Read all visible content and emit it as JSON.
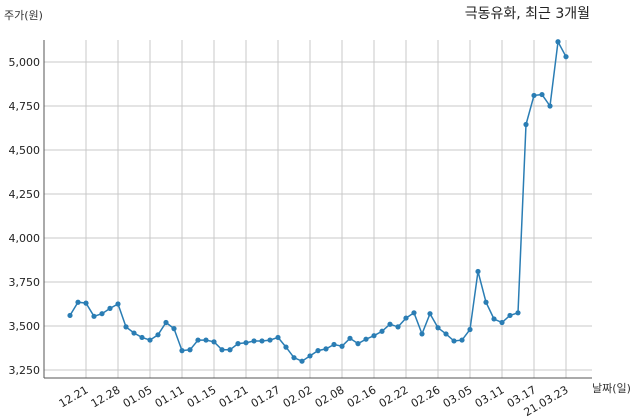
{
  "chart_data": {
    "type": "line",
    "title": "극동유화, 최근 3개월",
    "ylabel": "주가(원)",
    "xlabel": "날짜(일)",
    "ylim": [
      3250,
      5125
    ],
    "yticks": [
      3250,
      3500,
      3750,
      4000,
      4250,
      4500,
      4750,
      5000
    ],
    "ytick_labels": [
      "3,250",
      "3,500",
      "3,750",
      "4,000",
      "4,250",
      "4,500",
      "4,750",
      "5,000"
    ],
    "xtick_labels": [
      "12.21",
      "12.28",
      "01.05",
      "01.11",
      "01.15",
      "01.21",
      "01.27",
      "02.02",
      "02.08",
      "02.16",
      "02.22",
      "02.26",
      "03.05",
      "03.11",
      "03.17",
      "21.03.23"
    ],
    "xtick_indices": [
      3,
      7,
      11,
      15,
      19,
      23,
      27,
      31,
      35,
      39,
      43,
      47,
      51,
      55,
      59,
      63
    ],
    "grid": true,
    "line_color": "#2a7db4",
    "series": [
      {
        "values": [
          3560,
          3635,
          3630,
          3555,
          3570,
          3600,
          3625,
          3495,
          3460,
          3435,
          3420,
          3450,
          3520,
          3485,
          3360,
          3365,
          3420,
          3420,
          3410,
          3365,
          3365,
          3400,
          3405,
          3415,
          3415,
          3420,
          3435,
          3380,
          3320,
          3300,
          3330,
          3360,
          3370,
          3395,
          3385,
          3430,
          3400,
          3425,
          3445,
          3470,
          3510,
          3495,
          3545,
          3575,
          3455,
          3570,
          3490,
          3455,
          3415,
          3420,
          3480,
          3810,
          3635,
          3540,
          3520,
          3560,
          3575,
          4645,
          4810,
          4815,
          4750,
          5115,
          5030
        ]
      }
    ]
  }
}
